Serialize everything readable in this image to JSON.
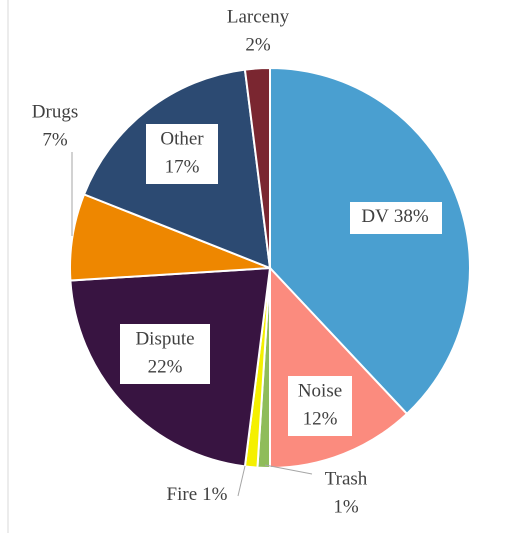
{
  "chart_data": {
    "type": "pie",
    "categories": [
      "DV",
      "Noise",
      "Trash",
      "Fire",
      "Dispute",
      "Drugs",
      "Other",
      "Larceny"
    ],
    "values": [
      38,
      12,
      1,
      1,
      22,
      7,
      17,
      2
    ],
    "value_labels": [
      "38%",
      "12%",
      "1%",
      "1%",
      "22%",
      "7%",
      "17%",
      "2%"
    ],
    "colors": [
      "#4a9fd0",
      "#fb8b7e",
      "#8fbc5a",
      "#f5f000",
      "#381441",
      "#ee8700",
      "#2c4a72",
      "#7a2630"
    ]
  }
}
